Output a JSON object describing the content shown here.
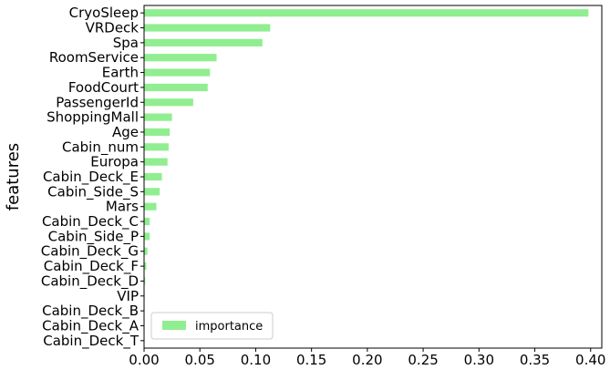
{
  "chart_data": {
    "type": "bar",
    "orientation": "horizontal",
    "title": "",
    "xlabel": "",
    "ylabel": "features",
    "xlim": [
      0,
      0.41
    ],
    "xticks": [
      "0.00",
      "0.05",
      "0.10",
      "0.15",
      "0.20",
      "0.25",
      "0.30",
      "0.35",
      "0.40"
    ],
    "grid": false,
    "legend": {
      "position": "lower-left",
      "entries": [
        "importance"
      ]
    },
    "bar_color": "#90ee90",
    "categories": [
      "CryoSleep",
      "VRDeck",
      "Spa",
      "RoomService",
      "Earth",
      "FoodCourt",
      "PassengerId",
      "ShoppingMall",
      "Age",
      "Cabin_num",
      "Europa",
      "Cabin_Deck_E",
      "Cabin_Side_S",
      "Mars",
      "Cabin_Deck_C",
      "Cabin_Side_P",
      "Cabin_Deck_G",
      "Cabin_Deck_F",
      "Cabin_Deck_D",
      "VIP",
      "Cabin_Deck_B",
      "Cabin_Deck_A",
      "Cabin_Deck_T"
    ],
    "series": [
      {
        "name": "importance",
        "values": [
          0.398,
          0.113,
          0.106,
          0.065,
          0.059,
          0.057,
          0.044,
          0.025,
          0.023,
          0.022,
          0.021,
          0.016,
          0.014,
          0.011,
          0.005,
          0.005,
          0.003,
          0.002,
          0.001,
          0.0005,
          0.0003,
          0.0002,
          0.0001
        ]
      }
    ]
  }
}
